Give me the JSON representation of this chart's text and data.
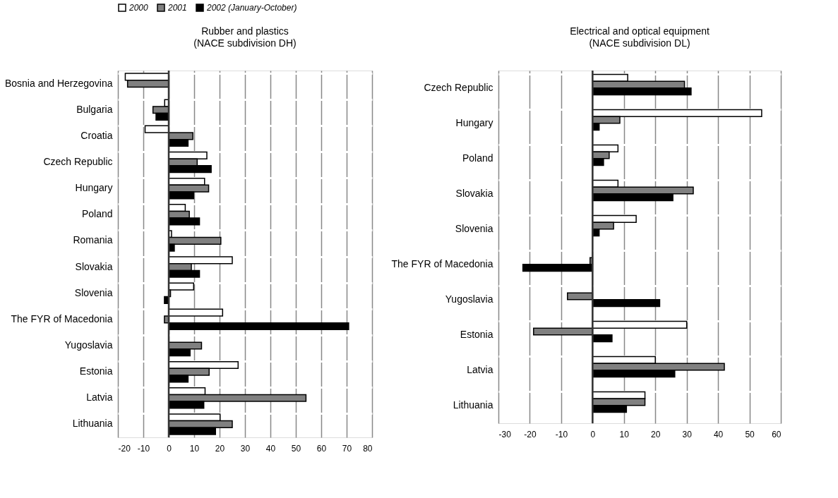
{
  "chart_data": [
    {
      "type": "bar",
      "orientation": "horizontal",
      "title": "Rubber and plastics",
      "subtitle": "(NACE subdivision DH)",
      "categories": [
        "Bosnia and Herzegovina",
        "Bulgaria",
        "Croatia",
        "Czech Republic",
        "Hungary",
        "Poland",
        "Romania",
        "Slovakia",
        "Slovenia",
        "The FYR of Macedonia",
        "Yugoslavia",
        "Estonia",
        "Latvia",
        "Lithuania"
      ],
      "series": [
        {
          "name": "2000",
          "color": "#ffffff",
          "values": [
            -17.1,
            -1.6,
            -9.3,
            15.0,
            14.1,
            6.5,
            1.1,
            25.0,
            9.8,
            21.2,
            null,
            27.3,
            14.3,
            20.2
          ]
        },
        {
          "name": "2001",
          "color": "#808080",
          "values": [
            -16.2,
            -6.2,
            9.5,
            11.2,
            15.7,
            8.1,
            20.5,
            8.9,
            0.7,
            -1.7,
            12.9,
            15.9,
            54.0,
            25.0
          ]
        },
        {
          "name": "2002 (January-October)",
          "color": "#000000",
          "values": [
            null,
            -5.0,
            7.6,
            16.7,
            9.8,
            12.1,
            2.2,
            12.1,
            -1.7,
            70.8,
            8.4,
            7.6,
            13.8,
            18.4
          ]
        }
      ],
      "xlim": [
        -20,
        80
      ],
      "xticks": [
        -20,
        -10,
        0,
        10,
        20,
        30,
        40,
        50,
        60,
        70,
        80
      ],
      "grid": true,
      "legend": "top",
      "ref_lines": [
        {
          "axis": "x",
          "value": 0
        }
      ]
    },
    {
      "type": "bar",
      "orientation": "horizontal",
      "title": "Electrical and optical equipment",
      "subtitle": "(NACE subdivision DL)",
      "categories": [
        "Czech Republic",
        "Hungary",
        "Poland",
        "Slovakia",
        "Slovenia",
        "The FYR of Macedonia",
        "Yugoslavia",
        "Estonia",
        "Latvia",
        "Lithuania"
      ],
      "series": [
        {
          "name": "2000",
          "color": "#ffffff",
          "values": [
            11.2,
            53.9,
            8.1,
            8.1,
            13.9,
            null,
            null,
            30.0,
            20.0,
            16.7
          ]
        },
        {
          "name": "2001",
          "color": "#808080",
          "values": [
            29.3,
            8.7,
            5.3,
            32.1,
            6.7,
            -0.8,
            -8.0,
            -18.8,
            42.0,
            16.7
          ]
        },
        {
          "name": "2002 (January-October)",
          "color": "#000000",
          "values": [
            31.4,
            2.1,
            3.5,
            25.6,
            2.1,
            -22.2,
            21.4,
            6.2,
            26.2,
            10.8
          ]
        }
      ],
      "xlim": [
        -30,
        60
      ],
      "xticks": [
        -30,
        -20,
        -10,
        0,
        10,
        20,
        30,
        40,
        50,
        60
      ],
      "grid": true,
      "ref_lines": [
        {
          "axis": "x",
          "value": 0
        }
      ]
    }
  ]
}
